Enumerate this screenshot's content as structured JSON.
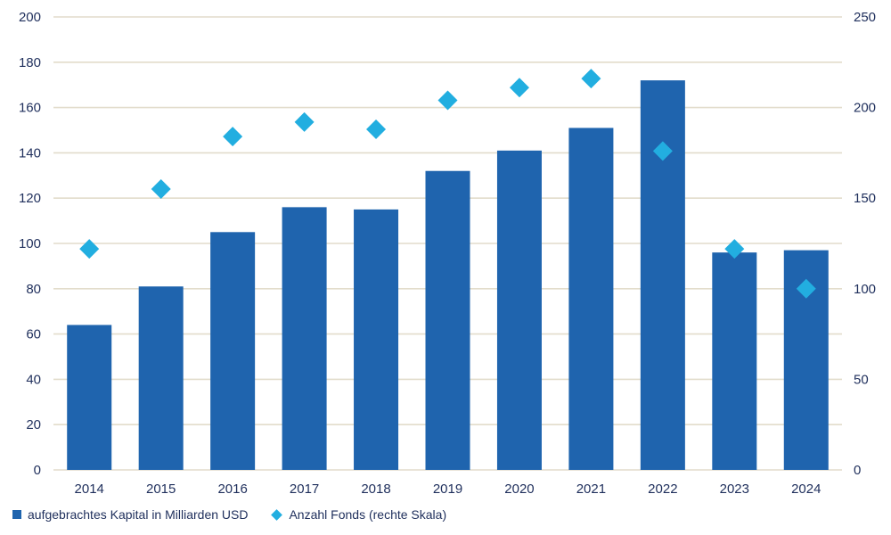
{
  "chart_data": {
    "type": "bar",
    "categories": [
      "2014",
      "2015",
      "2016",
      "2017",
      "2018",
      "2019",
      "2020",
      "2021",
      "2022",
      "2023",
      "2024"
    ],
    "series": [
      {
        "name": "aufgebrachtes Kapital in Milliarden USD",
        "type": "bar",
        "axis": "left",
        "values": [
          64,
          81,
          105,
          116,
          115,
          132,
          141,
          151,
          172,
          96,
          97
        ],
        "color": "#1f64ae"
      },
      {
        "name": "Anzahl Fonds (rechte Skala)",
        "type": "scatter",
        "marker": "diamond",
        "axis": "right",
        "values": [
          122,
          155,
          184,
          192,
          188,
          204,
          211,
          216,
          176,
          122,
          100
        ],
        "color": "#22aee0"
      }
    ],
    "y_left": {
      "min": 0,
      "max": 200,
      "ticks": [
        0,
        20,
        40,
        60,
        80,
        100,
        120,
        140,
        160,
        180,
        200
      ]
    },
    "y_right": {
      "min": 0,
      "max": 250,
      "ticks": [
        0,
        50,
        100,
        150,
        200,
        250
      ]
    },
    "grid": true,
    "grid_color": "#e2dccb",
    "legend_position": "bottom-left",
    "xlabel": "",
    "ylabel": "",
    "title": ""
  },
  "legend": {
    "bar_label": "aufgebrachtes Kapital in Milliarden USD",
    "diamond_label": "Anzahl Fonds (rechte Skala)"
  }
}
